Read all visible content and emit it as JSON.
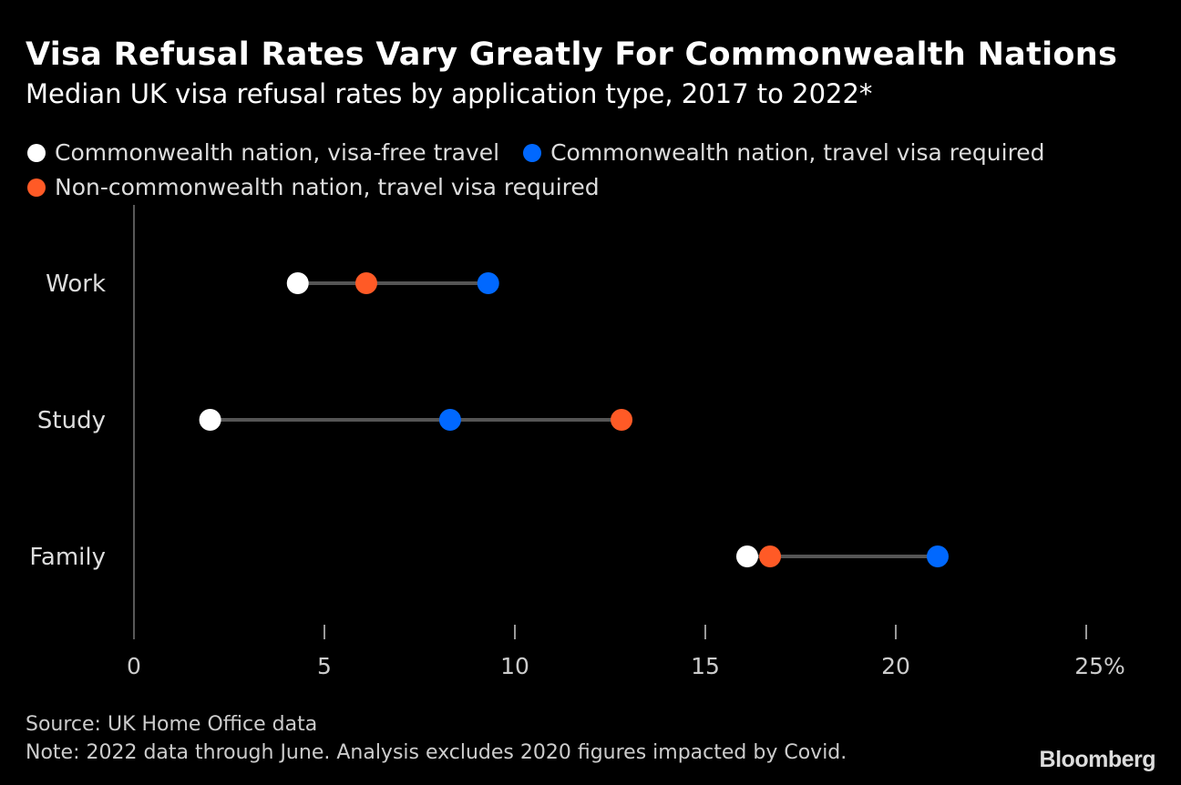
{
  "chart_data": {
    "type": "dumbbell",
    "title": "Visa Refusal Rates Vary Greatly For Commonwealth Nations",
    "subtitle": "Median UK visa refusal rates by application type, 2017 to 2022*",
    "categories": [
      "Work",
      "Study",
      "Family"
    ],
    "series": [
      {
        "name": "Commonwealth nation, visa-free travel",
        "color": "#ffffff",
        "values": [
          4.3,
          2.0,
          16.1
        ]
      },
      {
        "name": "Commonwealth nation, travel visa required",
        "color": "#0068ff",
        "values": [
          9.3,
          8.3,
          21.1
        ]
      },
      {
        "name": "Non-commonwealth nation, travel visa required",
        "color": "#ff5a26",
        "values": [
          6.1,
          12.8,
          16.7
        ]
      }
    ],
    "xlim": [
      0,
      25
    ],
    "xticks": [
      "0",
      "5",
      "10",
      "15",
      "20",
      "25%"
    ],
    "legend_position": "top",
    "grid": false,
    "connector_color": "#555555"
  },
  "footer": {
    "source": "Source: UK Home Office data",
    "note": "Note: 2022 data through June. Analysis excludes 2020 figures impacted by Covid."
  },
  "logo": "Bloomberg"
}
